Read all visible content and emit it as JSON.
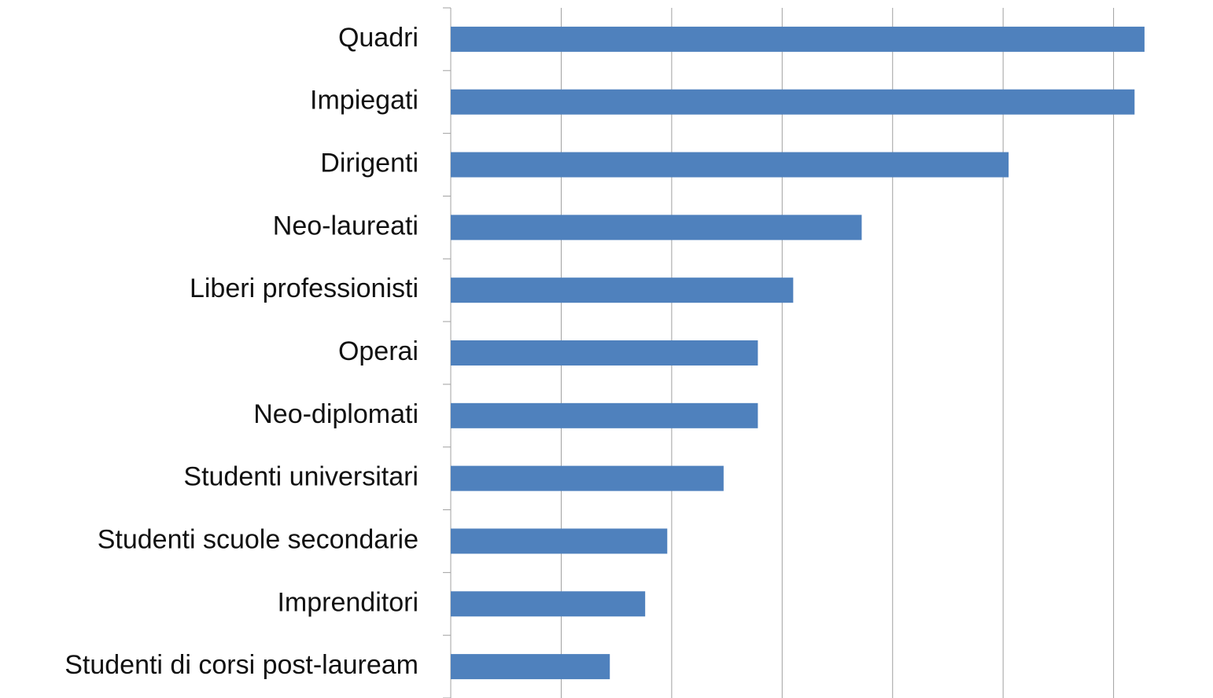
{
  "chart_data": {
    "type": "barh",
    "categories": [
      "Quadri",
      "Impiegati",
      "Dirigenti",
      "Neo-laureati",
      "Liberi professionisti",
      "Operai",
      "Neo-diplomati",
      "Studenti universitari",
      "Studenti scuole secondarie",
      "Imprenditori",
      "Studenti di corsi post-lauream"
    ],
    "values": [
      6.28,
      6.19,
      5.05,
      3.72,
      3.1,
      2.78,
      2.78,
      2.47,
      1.96,
      1.76,
      1.44
    ],
    "color": "#4f81bd",
    "xlim": [
      0,
      6.9
    ],
    "xticks": [
      0,
      1,
      2,
      3,
      4,
      5,
      6
    ],
    "grid": true
  }
}
